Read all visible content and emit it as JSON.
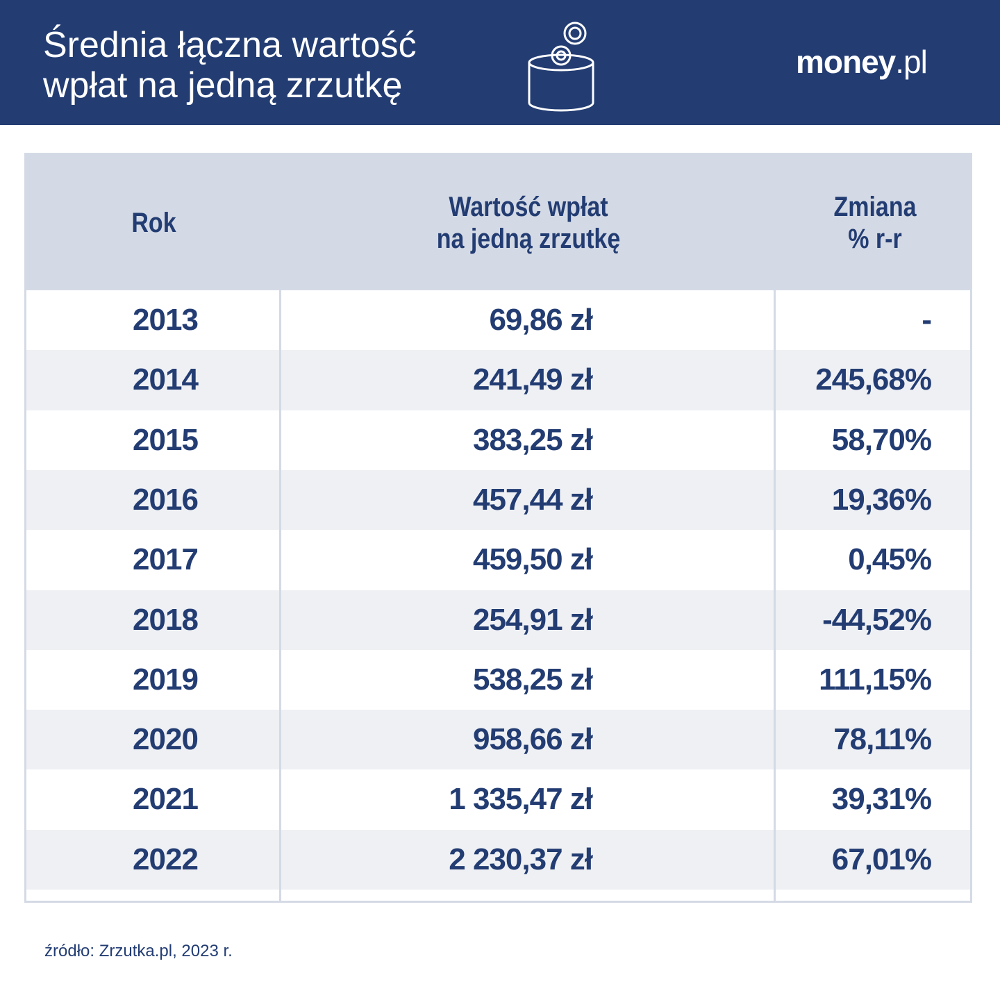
{
  "header": {
    "title": [
      "Średnia łączna wartość",
      "wpłat na jedną zrzutkę"
    ],
    "logo": {
      "brand": "money",
      "suffix": ".pl"
    }
  },
  "table": {
    "columns": [
      [
        "Rok"
      ],
      [
        "Wartość wpłat",
        "na jedną zrzutkę"
      ],
      [
        "Zmiana",
        "% r-r"
      ]
    ],
    "rows": [
      [
        "2013",
        "69,86 zł",
        "-"
      ],
      [
        "2014",
        "241,49 zł",
        "245,68%"
      ],
      [
        "2015",
        "383,25 zł",
        "58,70%"
      ],
      [
        "2016",
        "457,44 zł",
        "19,36%"
      ],
      [
        "2017",
        "459,50 zł",
        "0,45%"
      ],
      [
        "2018",
        "254,91 zł",
        "-44,52%"
      ],
      [
        "2019",
        "538,25 zł",
        "111,15%"
      ],
      [
        "2020",
        "958,66 zł",
        "78,11%"
      ],
      [
        "2021",
        "1 335,47 zł",
        "39,31%"
      ],
      [
        "2022",
        "2 230,37 zł",
        "67,01%"
      ]
    ]
  },
  "footer": {
    "source": "źródło: Zrzutka.pl, 2023 r."
  }
}
